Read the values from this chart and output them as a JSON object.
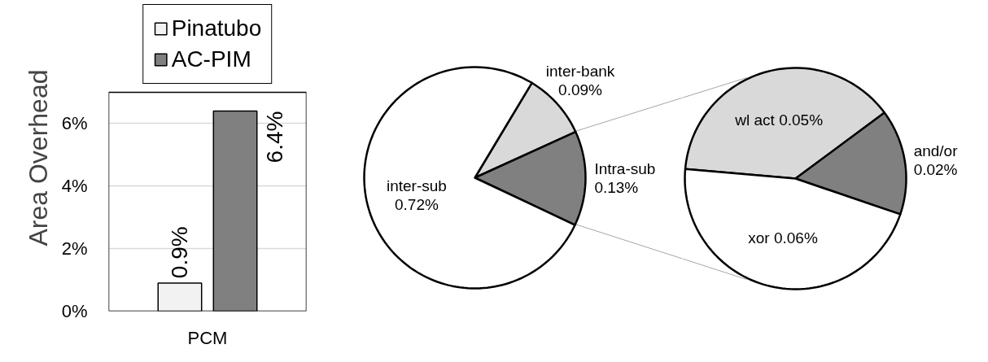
{
  "chart_data": [
    {
      "type": "bar",
      "ylabel": "Area Overhead",
      "categories": [
        "PCM"
      ],
      "series": [
        {
          "name": "Pinatubo",
          "color": "#f2f2f2",
          "values": [
            0.9
          ],
          "value_labels": [
            "0.9%"
          ]
        },
        {
          "name": "AC-PIM",
          "color": "#808080",
          "values": [
            6.4
          ],
          "value_labels": [
            "6.4%"
          ]
        }
      ],
      "ylim": [
        0,
        7
      ],
      "yticks": [
        {
          "value": 0,
          "label": "0%"
        },
        {
          "value": 2,
          "label": "2%"
        },
        {
          "value": 4,
          "label": "4%"
        },
        {
          "value": 6,
          "label": "6%"
        }
      ],
      "grid": "y",
      "legend": "top"
    },
    {
      "type": "pie",
      "categories": [
        "inter-bank",
        "Intra-sub",
        "inter-sub"
      ],
      "values": [
        0.09,
        0.13,
        0.72
      ],
      "colors": [
        "#d9d9d9",
        "#808080",
        "#ffffff"
      ],
      "value_labels": [
        "0.09%",
        "0.13%",
        "0.72%"
      ]
    },
    {
      "type": "pie",
      "categories": [
        "wl act",
        "and/or",
        "xor"
      ],
      "values": [
        0.05,
        0.02,
        0.06
      ],
      "colors": [
        "#d9d9d9",
        "#808080",
        "#ffffff"
      ],
      "value_labels": [
        "0.05%",
        "0.02%",
        "0.06%"
      ]
    }
  ]
}
